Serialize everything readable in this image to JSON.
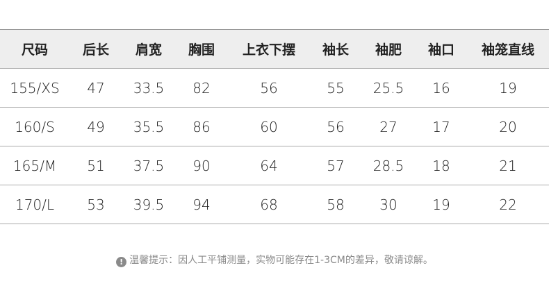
{
  "table": {
    "headers": [
      "尺码",
      "后长",
      "肩宽",
      "胸围",
      "上衣下摆",
      "袖长",
      "袖肥",
      "袖口",
      "袖笼直线"
    ],
    "rows": [
      [
        "155/XS",
        "47",
        "33.5",
        "82",
        "56",
        "55",
        "25.5",
        "16",
        "19"
      ],
      [
        "160/S",
        "49",
        "35.5",
        "86",
        "60",
        "56",
        "27",
        "17",
        "20"
      ],
      [
        "165/M",
        "51",
        "37.5",
        "90",
        "64",
        "57",
        "28.5",
        "18",
        "21"
      ],
      [
        "170/L",
        "53",
        "39.5",
        "94",
        "68",
        "58",
        "30",
        "19",
        "22"
      ]
    ]
  },
  "note": {
    "icon": "exclamation-circle-icon",
    "icon_glyph": "!",
    "text": "温馨提示：因人工平铺测量，实物可能存在1-3CM的差异，敬请谅解。"
  }
}
